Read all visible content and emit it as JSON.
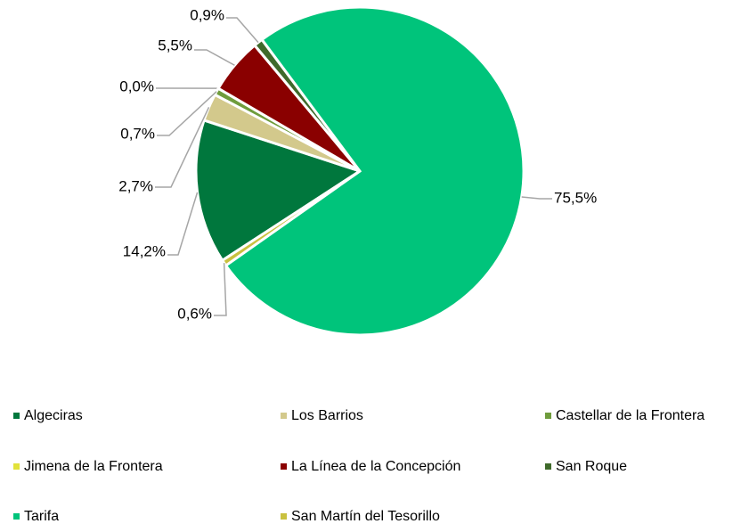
{
  "chart_data": {
    "type": "pie",
    "categories": [
      "Algeciras",
      "Los Barrios",
      "Castellar de la Frontera",
      "Jimena de la Frontera",
      "La Línea de la Concepción",
      "San Roque",
      "Tarifa",
      "San Martín del Tesorillo"
    ],
    "values": [
      14.2,
      2.7,
      0.7,
      0.0,
      5.5,
      0.9,
      75.5,
      0.6
    ],
    "value_labels": [
      "14,2%",
      "2,7%",
      "0,7%",
      "0,0%",
      "5,5%",
      "0,9%",
      "75,5%",
      "0,6%"
    ],
    "colors": [
      "#00773d",
      "#d3c98c",
      "#6f9c3c",
      "#e2e23a",
      "#8a0000",
      "#3f6a2b",
      "#00c47b",
      "#c9c13f"
    ],
    "legend": "bottom"
  }
}
